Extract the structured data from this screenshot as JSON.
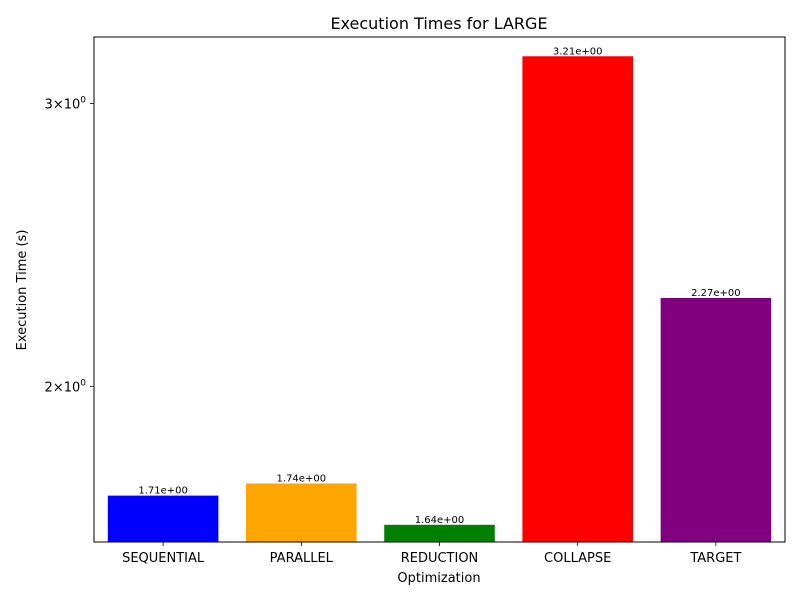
{
  "chart_data": {
    "type": "bar",
    "title": "Execution Times for LARGE",
    "xlabel": "Optimization",
    "ylabel": "Execution Time (s)",
    "yscale": "log",
    "ylim": [
      1.6,
      3.3
    ],
    "grid": false,
    "legend": "none",
    "categories": [
      "SEQUENTIAL",
      "PARALLEL",
      "REDUCTION",
      "COLLAPSE",
      "TARGET"
    ],
    "values": [
      1.71,
      1.74,
      1.64,
      3.21,
      2.27
    ],
    "value_labels": [
      "1.71e+00",
      "1.74e+00",
      "1.64e+00",
      "3.21e+00",
      "2.27e+00"
    ],
    "colors": [
      "#0000ff",
      "#ffa500",
      "#008000",
      "#ff0000",
      "#800080"
    ],
    "y_ticks": [
      {
        "value": 2,
        "base": "2",
        "mult": "×",
        "exp_base": "10",
        "exp": "0"
      },
      {
        "value": 3,
        "base": "3",
        "mult": "×",
        "exp_base": "10",
        "exp": "0"
      }
    ]
  }
}
